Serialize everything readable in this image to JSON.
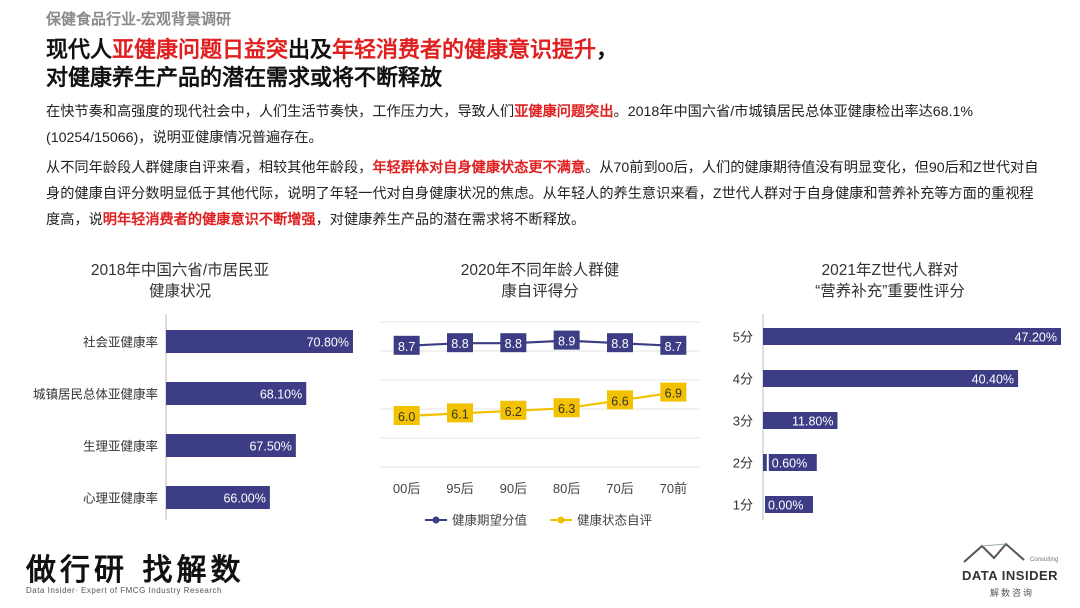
{
  "page": {
    "subtitle": "保健食品行业-宏观背景调研",
    "headline_line1": [
      {
        "text": "现代人",
        "red": false
      },
      {
        "text": "亚健康问题日益突",
        "red": true
      },
      {
        "text": "出及",
        "red": false
      },
      {
        "text": "年轻消费者的健康意识提升",
        "red": true
      },
      {
        "text": "，",
        "red": false
      }
    ],
    "headline_line2": "对健康养生产品的潜在需求或将不断释放",
    "paragraph1": [
      {
        "text": "在快节奏和高强度的现代社会中，人们生活节奏快，工作压力大，导致人们",
        "red": false
      },
      {
        "text": "亚健康问题突出",
        "red": true
      },
      {
        "text": "。2018年中国六省/市城镇居民总体亚健康检出率达68.1%(10254/15066)，说明亚健康情况普遍存在。",
        "red": false
      }
    ],
    "paragraph2": [
      {
        "text": "从不同年龄段人群健康自评来看，相较其他年龄段，",
        "red": false
      },
      {
        "text": "年轻群体对自身健康状态更不满意",
        "red": true
      },
      {
        "text": "。从70前到00后，人们的健康期待值没有明显变化，但90后和Z世代对自身的健康自评分数明显低于其他代际，说明了年轻一代对自身健康状况的焦虑。从年轻人的养生意识来看，Z世代人群对于自身健康和营养补充等方面的重视程度高，说",
        "red": false
      },
      {
        "text": "明年轻消费者的健康意识不断增强",
        "red": true
      },
      {
        "text": "，对健康养生产品的潜在需求将不断释放。",
        "red": false
      }
    ]
  },
  "footer": {
    "slogan": "做行研 找解数",
    "slogan_sub": "Data Insider· Expert of FMCG Industry Research",
    "brand_name": "DATA INSIDER",
    "brand_consult": "Consulting",
    "brand_cn": "解数咨询"
  },
  "colors": {
    "bar": "#3d3d86",
    "line_expect": "#3d3d86",
    "line_self": "#f2c200",
    "red": "#e02020"
  },
  "chart_data": [
    {
      "type": "bar",
      "orientation": "horizontal",
      "title": "2018年中国六省/市居民亚健康状况",
      "title_lines": [
        "2018年中国六省/市居民亚",
        "健康状况"
      ],
      "categories": [
        "社会亚健康率",
        "城镇居民总体亚健康率",
        "生理亚健康率",
        "心理亚健康率"
      ],
      "values": [
        70.8,
        68.1,
        67.5,
        66.0
      ],
      "value_labels": [
        "70.80%",
        "68.10%",
        "67.50%",
        "66.00%"
      ],
      "axis_min": 60,
      "grid": false
    },
    {
      "type": "line",
      "title": "2020年不同年龄人群健康自评得分",
      "title_lines": [
        "2020年不同年龄人群健",
        "康自评得分"
      ],
      "categories": [
        "00后",
        "95后",
        "90后",
        "80后",
        "70后",
        "70前"
      ],
      "series": [
        {
          "name": "健康期望分值",
          "values": [
            8.7,
            8.8,
            8.8,
            8.9,
            8.8,
            8.7
          ],
          "labels": [
            "8.7",
            "8.8",
            "8.8",
            "8.9",
            "8.8",
            "8.7"
          ]
        },
        {
          "name": "健康状态自评",
          "values": [
            6.0,
            6.1,
            6.2,
            6.3,
            6.6,
            6.9
          ],
          "labels": [
            "6.0",
            "6.1",
            "6.2",
            "6.3",
            "6.6",
            "6.9"
          ]
        }
      ],
      "legend": "bottom",
      "grid": true
    },
    {
      "type": "bar",
      "orientation": "horizontal",
      "title": "2021年Z世代人群对“营养补充”重要性评分",
      "title_lines": [
        "2021年Z世代人群对",
        "“营养补充”重要性评分"
      ],
      "categories": [
        "5分",
        "4分",
        "3分",
        "2分",
        "1分"
      ],
      "values": [
        47.2,
        40.4,
        11.8,
        0.6,
        0.0
      ],
      "value_labels": [
        "47.20%",
        "40.40%",
        "11.80%",
        "0.60%",
        "0.00%"
      ],
      "grid": false
    }
  ]
}
